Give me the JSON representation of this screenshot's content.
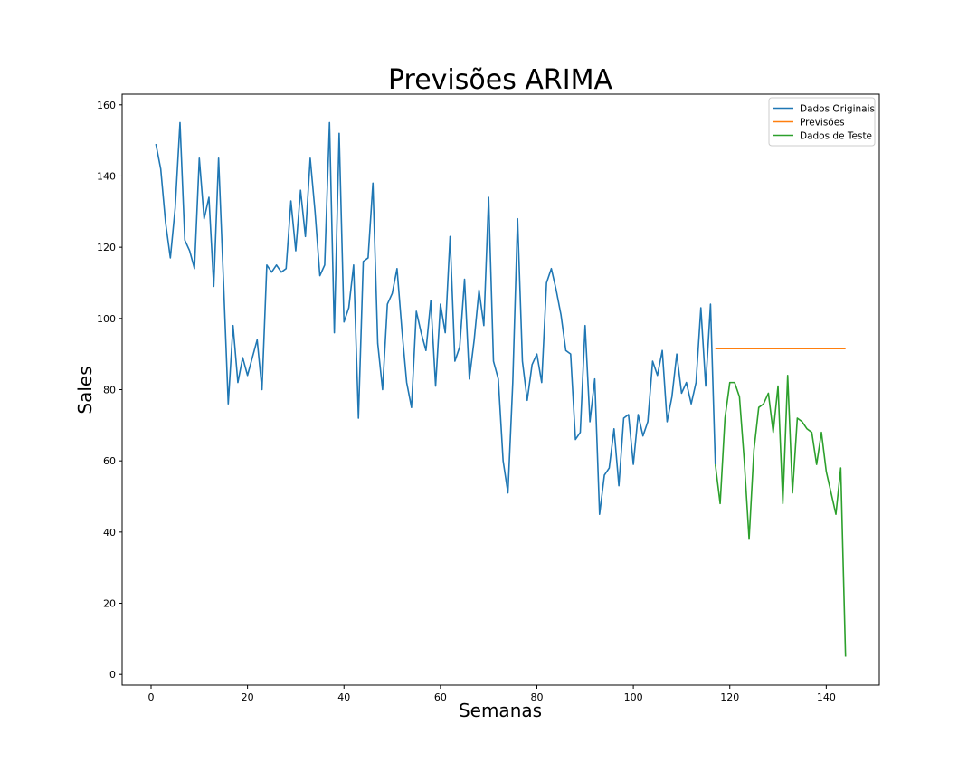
{
  "chart_data": {
    "type": "line",
    "title": "Previsões ARIMA",
    "xlabel": "Semanas",
    "ylabel": "Sales",
    "xlim": [
      -6,
      151
    ],
    "ylim": [
      -3,
      163
    ],
    "xticks": [
      0,
      20,
      40,
      60,
      80,
      100,
      120,
      140
    ],
    "yticks": [
      0,
      20,
      40,
      60,
      80,
      100,
      120,
      140,
      160
    ],
    "grid": false,
    "legend_position": "top-right",
    "series": [
      {
        "name": "Dados Originais",
        "color": "#1f77b4",
        "x": [
          1,
          2,
          3,
          4,
          5,
          6,
          7,
          8,
          9,
          10,
          11,
          12,
          13,
          14,
          15,
          16,
          17,
          18,
          19,
          20,
          21,
          22,
          23,
          24,
          25,
          26,
          27,
          28,
          29,
          30,
          31,
          32,
          33,
          34,
          35,
          36,
          37,
          38,
          39,
          40,
          41,
          42,
          43,
          44,
          45,
          46,
          47,
          48,
          49,
          50,
          51,
          52,
          53,
          54,
          55,
          56,
          57,
          58,
          59,
          60,
          61,
          62,
          63,
          64,
          65,
          66,
          67,
          68,
          69,
          70,
          71,
          72,
          73,
          74,
          75,
          76,
          77,
          78,
          79,
          80,
          81,
          82,
          83,
          84,
          85,
          86,
          87,
          88,
          89,
          90,
          91,
          92,
          93,
          94,
          95,
          96,
          97,
          98,
          99,
          100,
          101,
          102,
          103,
          104,
          105,
          106,
          107,
          108,
          109,
          110,
          111,
          112,
          113,
          114,
          115,
          116,
          117
        ],
        "y": [
          149,
          142,
          127,
          117,
          131,
          155,
          122,
          119,
          114,
          145,
          128,
          134,
          109,
          145,
          111,
          76,
          98,
          82,
          89,
          84,
          89,
          94,
          80,
          115,
          113,
          115,
          113,
          114,
          133,
          119,
          136,
          123,
          145,
          130,
          112,
          115,
          155,
          96,
          152,
          99,
          103,
          115,
          72,
          116,
          117,
          138,
          93,
          80,
          104,
          107,
          114,
          97,
          82,
          75,
          102,
          96,
          91,
          105,
          81,
          104,
          96,
          123,
          88,
          92,
          111,
          83,
          94,
          108,
          98,
          134,
          88,
          83,
          60,
          51,
          82,
          128,
          88,
          77,
          87,
          90,
          82,
          110,
          114,
          108,
          101,
          91,
          90,
          66,
          68,
          98,
          71,
          83,
          45,
          56,
          58,
          69,
          53,
          72,
          73,
          59,
          73,
          67,
          71,
          88,
          84,
          91,
          71,
          78,
          90,
          79,
          82,
          76,
          82,
          103,
          81,
          104,
          59
        ]
      },
      {
        "name": "Previsões",
        "color": "#ff7f0e",
        "x": [
          117,
          144
        ],
        "y": [
          91.5,
          91.5
        ]
      },
      {
        "name": "Dados de Teste",
        "color": "#2ca02c",
        "x": [
          117,
          118,
          119,
          120,
          121,
          122,
          123,
          124,
          125,
          126,
          127,
          128,
          129,
          130,
          131,
          132,
          133,
          134,
          135,
          136,
          137,
          138,
          139,
          140,
          141,
          142,
          143,
          144
        ],
        "y": [
          59,
          48,
          72,
          82,
          82,
          78,
          60,
          38,
          63,
          75,
          76,
          79,
          68,
          81,
          48,
          84,
          51,
          72,
          71,
          69,
          68,
          59,
          68,
          57,
          51,
          45,
          58,
          5
        ]
      }
    ]
  }
}
